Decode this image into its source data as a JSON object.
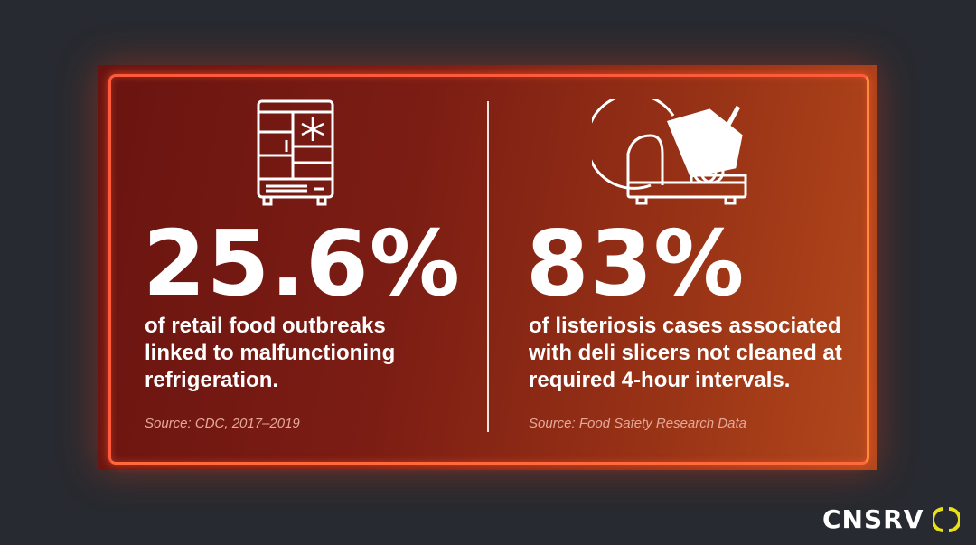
{
  "stats": [
    {
      "value": "25.6%",
      "description_lines": [
        "of retail food outbreaks",
        "linked to malfunctioning",
        "refrigeration."
      ],
      "source": "Source: CDC, 2017–2019",
      "icon": "refrigerator-icon"
    },
    {
      "value": "83%",
      "description_lines": [
        "of listeriosis cases associated",
        "with deli slicers not cleaned at",
        "required 4-hour intervals."
      ],
      "source": "Source: Food Safety Research Data",
      "icon": "deli-slicer-icon"
    }
  ],
  "logo": {
    "text": "CNSRV",
    "accent": "#e8e01c"
  },
  "colors": {
    "frame": "#ff5a3c",
    "background": "#272a30"
  }
}
